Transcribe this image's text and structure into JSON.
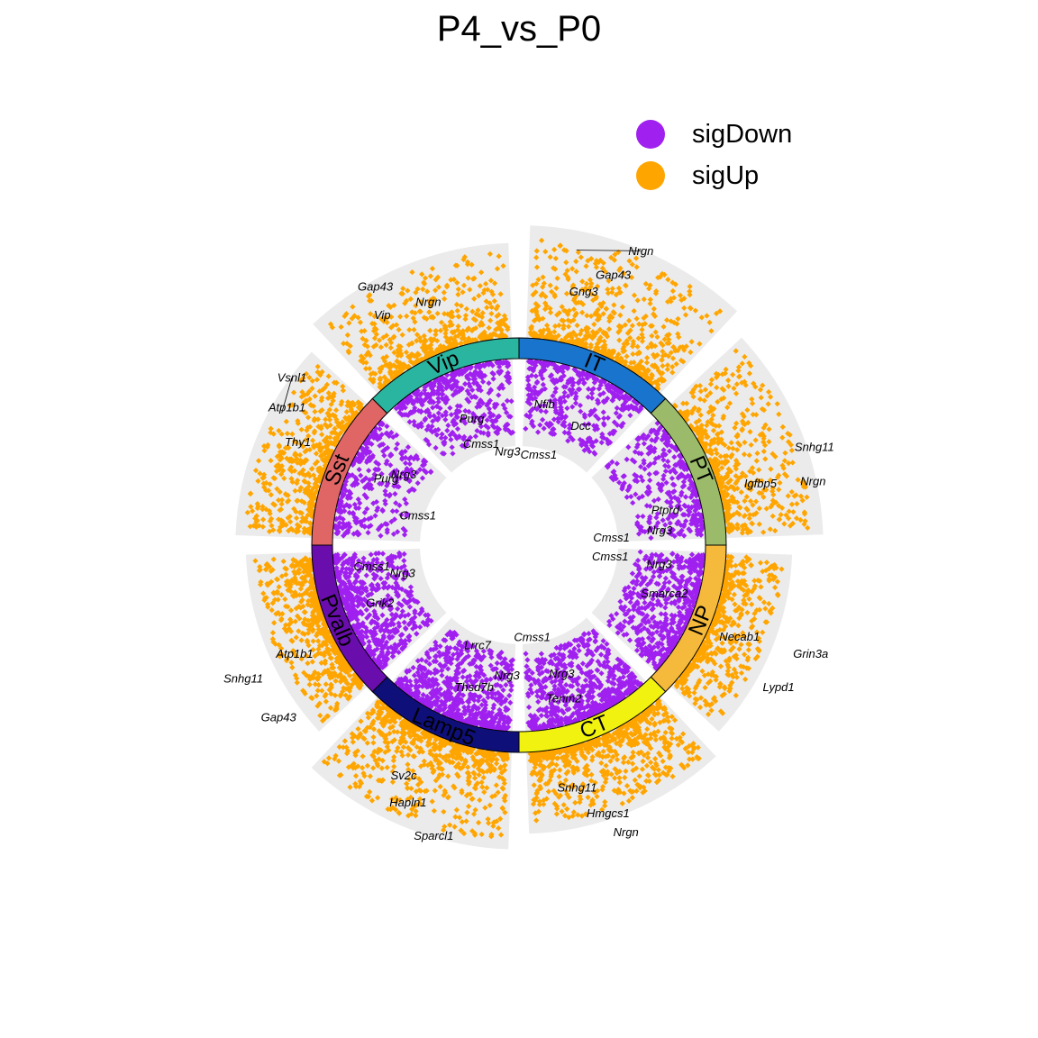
{
  "colors": {
    "sigDown": "#A020F0",
    "sigUp": "#FFA500",
    "background_sector": "#EBEBEB"
  },
  "chart_data": {
    "type": "scatter",
    "title": "P4_vs_P0",
    "legend": {
      "position": "top-right",
      "entries": [
        {
          "label": "sigDown",
          "color": "#A020F0"
        },
        {
          "label": "sigUp",
          "color": "#FFA500"
        }
      ]
    },
    "clusters": [
      {
        "name": "IT",
        "color": "#1874CD",
        "up_extent": 1.0,
        "down_extent": 0.6,
        "up_count": 520,
        "down_count": 360,
        "up_labels": [
          {
            "text": "Nrgn",
            "r": 0.97,
            "f": 0.22,
            "lf": 0.5
          },
          {
            "text": "Gap43",
            "r": 0.66,
            "f": 0.45,
            "lf": 0.42
          },
          {
            "text": "Gng3",
            "r": 0.42,
            "f": 0.3,
            "lf": 0.3
          }
        ],
        "down_labels": [
          {
            "text": "Nfib",
            "r": 0.36,
            "f": 0.2
          },
          {
            "text": "Dcc",
            "r": 0.46,
            "f": 0.62
          },
          {
            "text": "Cmss1",
            "r": 0.92,
            "f": 0.25
          }
        ]
      },
      {
        "name": "PT",
        "color": "#9BBB6B",
        "up_extent": 0.85,
        "down_extent": 0.6,
        "up_count": 460,
        "down_count": 330,
        "up_labels": [
          {
            "text": "Snhg11",
            "r": 0.9,
            "f": 0.55,
            "lf": 0.6
          },
          {
            "text": "Nrgn",
            "r": 0.8,
            "f": 0.8,
            "lf": 0.75
          },
          {
            "text": "Igfbp5",
            "r": 0.3,
            "f": 0.72,
            "lf": 0.7
          }
        ],
        "down_labels": [
          {
            "text": "Ptprd",
            "r": 0.28,
            "f": 0.72
          },
          {
            "text": "Nrg3",
            "r": 0.38,
            "f": 0.9
          },
          {
            "text": "Cmss1",
            "r": 0.92,
            "f": 0.93
          }
        ]
      },
      {
        "name": "NP",
        "color": "#F5BA3C",
        "up_extent": 0.55,
        "down_extent": 0.6,
        "up_count": 440,
        "down_count": 520,
        "up_labels": [
          {
            "text": "Grin3a",
            "r": 0.9,
            "f": 0.5,
            "lf": 0.45
          },
          {
            "text": "Lypd1",
            "r": 0.75,
            "f": 0.75,
            "lf": 0.65
          },
          {
            "text": "Necab1",
            "r": 0.2,
            "f": 0.48,
            "lf": 0.5
          }
        ],
        "down_labels": [
          {
            "text": "Cmss1",
            "r": 0.93,
            "f": 0.12
          },
          {
            "text": "Nrg3",
            "r": 0.38,
            "f": 0.14
          },
          {
            "text": "Smarca2",
            "r": 0.25,
            "f": 0.4
          }
        ]
      },
      {
        "name": "CT",
        "color": "#F2F211",
        "up_extent": 0.7,
        "down_extent": 0.65,
        "up_count": 620,
        "down_count": 620,
        "up_labels": [
          {
            "text": "Snhg11",
            "r": 0.3,
            "f": 0.7,
            "lf": 0.72
          },
          {
            "text": "Hmgcs1",
            "r": 0.62,
            "f": 0.55,
            "lf": 0.6
          },
          {
            "text": "Nrgn",
            "r": 0.85,
            "f": 0.58,
            "lf": 0.55
          }
        ],
        "down_labels": [
          {
            "text": "Nrg3",
            "r": 0.45,
            "f": 0.6
          },
          {
            "text": "Tenm2",
            "r": 0.18,
            "f": 0.65
          },
          {
            "text": "Cmss1",
            "r": 0.92,
            "f": 0.85
          }
        ]
      },
      {
        "name": "Lamp5",
        "color": "#0F0F7A",
        "up_extent": 0.85,
        "down_extent": 0.65,
        "up_count": 620,
        "down_count": 620,
        "up_labels": [
          {
            "text": "Sv2c",
            "r": 0.38,
            "f": 0.58,
            "lf": 0.6
          },
          {
            "text": "Hapln1",
            "r": 0.6,
            "f": 0.45,
            "lf": 0.52
          },
          {
            "text": "Sparcl1",
            "r": 0.82,
            "f": 0.25,
            "lf": 0.35
          }
        ],
        "down_labels": [
          {
            "text": "Nrg3",
            "r": 0.5,
            "f": 0.08
          },
          {
            "text": "Thsd7b",
            "r": 0.3,
            "f": 0.38
          },
          {
            "text": "Lrrc7",
            "r": 0.75,
            "f": 0.5
          }
        ]
      },
      {
        "name": "Pvalb",
        "color": "#6A0DAD",
        "up_extent": 0.55,
        "down_extent": 0.6,
        "up_count": 520,
        "down_count": 560,
        "up_labels": [
          {
            "text": "Atp1b1",
            "r": 0.3,
            "f": 0.42,
            "lf": 0.42
          },
          {
            "text": "Snhg11",
            "r": 0.85,
            "f": 0.45,
            "lf": 0.42
          },
          {
            "text": "Gap43",
            "r": 0.75,
            "f": 0.18,
            "lf": 0.18
          }
        ],
        "down_labels": [
          {
            "text": "Grik2",
            "r": 0.28,
            "f": 0.5
          },
          {
            "text": "Nrg3",
            "r": 0.62,
            "f": 0.72
          },
          {
            "text": "Cmss1",
            "r": 0.3,
            "f": 0.85
          }
        ]
      },
      {
        "name": "Sst",
        "color": "#E06666",
        "up_extent": 0.65,
        "down_extent": 0.6,
        "up_count": 480,
        "down_count": 330,
        "up_labels": [
          {
            "text": "Thy1",
            "r": 0.25,
            "f": 0.55,
            "lf": 0.56
          },
          {
            "text": "Atp1b1",
            "r": 0.5,
            "f": 0.68,
            "lf": 0.7
          },
          {
            "text": "Vsnl1",
            "r": 0.62,
            "f": 0.66,
            "lf": 0.84
          }
        ],
        "down_labels": [
          {
            "text": "Purg",
            "r": 0.3,
            "f": 0.6
          },
          {
            "text": "Nrg3",
            "r": 0.45,
            "f": 0.72
          },
          {
            "text": "Cmss1",
            "r": 0.78,
            "f": 0.35
          }
        ]
      },
      {
        "name": "Vip",
        "color": "#2AB5A0",
        "up_extent": 0.83,
        "down_extent": 0.62,
        "up_count": 480,
        "down_count": 400,
        "up_labels": [
          {
            "text": "Nrgn",
            "r": 0.4,
            "f": 0.52,
            "lf": 0.55
          },
          {
            "text": "Vip",
            "r": 0.48,
            "f": 0.28,
            "lf": 0.3
          },
          {
            "text": "Gap43",
            "r": 0.75,
            "f": 0.32,
            "lf": 0.34
          }
        ],
        "down_labels": [
          {
            "text": "Purg",
            "r": 0.45,
            "f": 0.55
          },
          {
            "text": "Cmss1",
            "r": 0.75,
            "f": 0.55
          },
          {
            "text": "Nrg3",
            "r": 0.9,
            "f": 0.88
          }
        ]
      }
    ]
  }
}
